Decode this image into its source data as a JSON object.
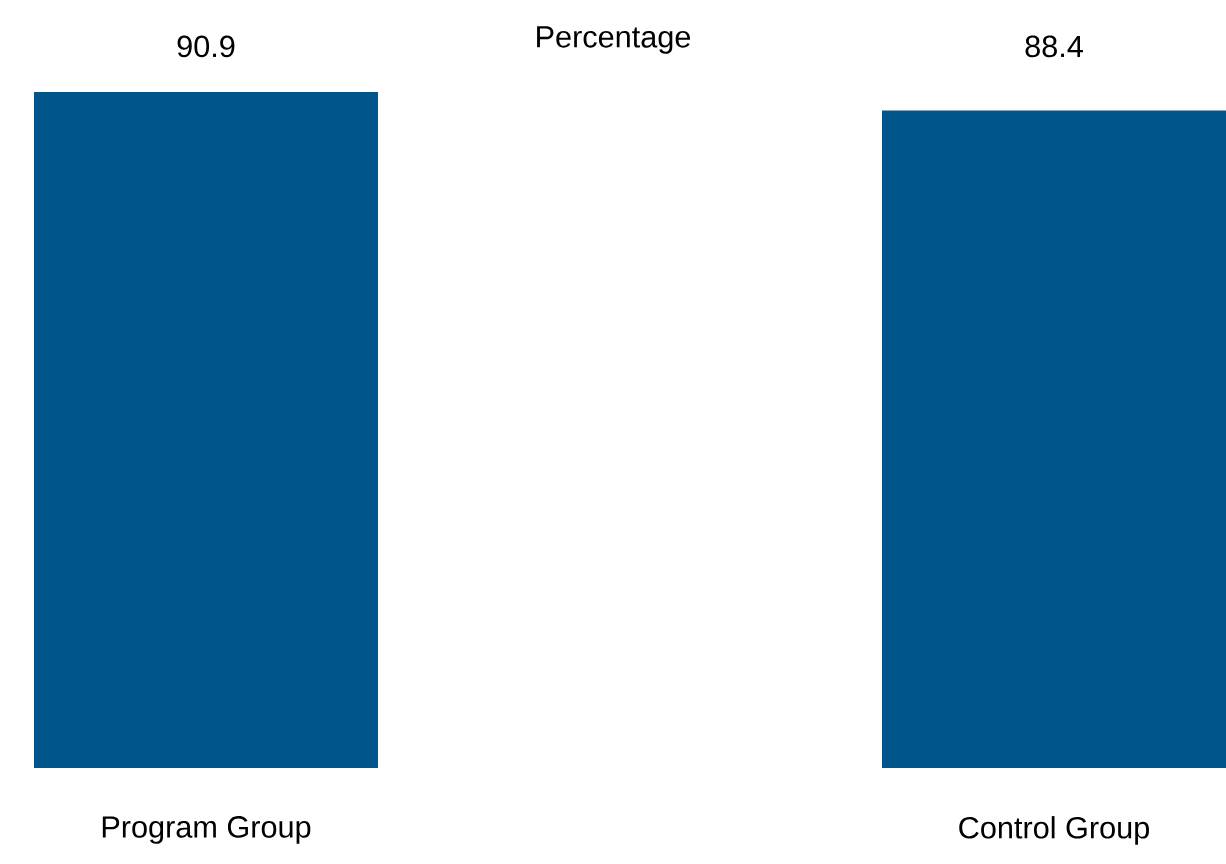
{
  "chart_data": {
    "type": "bar",
    "title": "Percentage",
    "categories": [
      "Program Group",
      "Control Group"
    ],
    "values": [
      90.9,
      88.4
    ],
    "color": "#00558b",
    "data_labels": true
  }
}
